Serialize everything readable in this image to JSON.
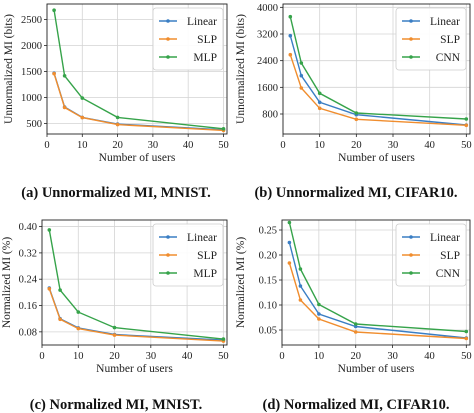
{
  "chart_data": [
    {
      "type": "line",
      "caption": "(a) Unnormalized MI, MNIST.",
      "xlabel": "Number of users",
      "ylabel": "Unnormalized MI (bits)",
      "x": [
        2,
        5,
        10,
        20,
        50
      ],
      "xlim": [
        0,
        51
      ],
      "ylim": [
        300,
        2800
      ],
      "xticks": [
        0,
        10,
        20,
        30,
        40,
        50
      ],
      "yticks": [
        500,
        1000,
        1500,
        2000,
        2500
      ],
      "grid": true,
      "legend": "top-right",
      "series": [
        {
          "name": "Linear",
          "color": "#3a7ec4",
          "values": [
            1470,
            820,
            620,
            490,
            380
          ]
        },
        {
          "name": "SLP",
          "color": "#f08d2e",
          "values": [
            1460,
            810,
            615,
            480,
            370
          ]
        },
        {
          "name": "MLP",
          "color": "#36a34a",
          "values": [
            2680,
            1420,
            990,
            620,
            400
          ]
        }
      ]
    },
    {
      "type": "line",
      "caption": "(b) Unnormalized MI, CIFAR10.",
      "xlabel": "Number of users",
      "ylabel": "Unnormalized MI (bits)",
      "x": [
        2,
        5,
        10,
        20,
        50
      ],
      "xlim": [
        0,
        51
      ],
      "ylim": [
        200,
        4100
      ],
      "xticks": [
        0,
        10,
        20,
        30,
        40,
        50
      ],
      "yticks": [
        800,
        1600,
        2400,
        3200,
        4000
      ],
      "grid": true,
      "legend": "top-right",
      "series": [
        {
          "name": "Linear",
          "color": "#3a7ec4",
          "values": [
            3150,
            1950,
            1150,
            780,
            470
          ]
        },
        {
          "name": "SLP",
          "color": "#f08d2e",
          "values": [
            2580,
            1580,
            970,
            640,
            460
          ]
        },
        {
          "name": "CNN",
          "color": "#36a34a",
          "values": [
            3720,
            2330,
            1420,
            830,
            650
          ]
        }
      ]
    },
    {
      "type": "line",
      "caption": "(c) Normalized MI, MNIST.",
      "xlabel": "Number of users",
      "ylabel": "Normalized MI (%)",
      "x": [
        2,
        5,
        10,
        20,
        50
      ],
      "xlim": [
        0,
        51
      ],
      "ylim": [
        0.04,
        0.42
      ],
      "xticks": [
        0,
        10,
        20,
        30,
        40,
        50
      ],
      "yticks": [
        0.08,
        0.16,
        0.24,
        0.32,
        0.4
      ],
      "grid": true,
      "legend": "top-right",
      "series": [
        {
          "name": "Linear",
          "color": "#3a7ec4",
          "values": [
            0.213,
            0.12,
            0.092,
            0.072,
            0.055
          ]
        },
        {
          "name": "SLP",
          "color": "#f08d2e",
          "values": [
            0.211,
            0.118,
            0.09,
            0.07,
            0.052
          ]
        },
        {
          "name": "MLP",
          "color": "#36a34a",
          "values": [
            0.39,
            0.207,
            0.14,
            0.093,
            0.058
          ]
        }
      ]
    },
    {
      "type": "line",
      "caption": "(d) Normalized MI, CIFAR10.",
      "xlabel": "Number of users",
      "ylabel": "Normalized MI (%)",
      "x": [
        2,
        5,
        10,
        20,
        50
      ],
      "xlim": [
        0,
        51
      ],
      "ylim": [
        0.02,
        0.27
      ],
      "xticks": [
        0,
        10,
        20,
        30,
        40,
        50
      ],
      "yticks": [
        0.05,
        0.1,
        0.15,
        0.2,
        0.25
      ],
      "grid": true,
      "legend": "top-right",
      "series": [
        {
          "name": "Linear",
          "color": "#3a7ec4",
          "values": [
            0.225,
            0.138,
            0.082,
            0.057,
            0.034
          ]
        },
        {
          "name": "SLP",
          "color": "#f08d2e",
          "values": [
            0.184,
            0.11,
            0.072,
            0.046,
            0.033
          ]
        },
        {
          "name": "CNN",
          "color": "#36a34a",
          "values": [
            0.265,
            0.172,
            0.101,
            0.062,
            0.047
          ]
        }
      ]
    }
  ]
}
